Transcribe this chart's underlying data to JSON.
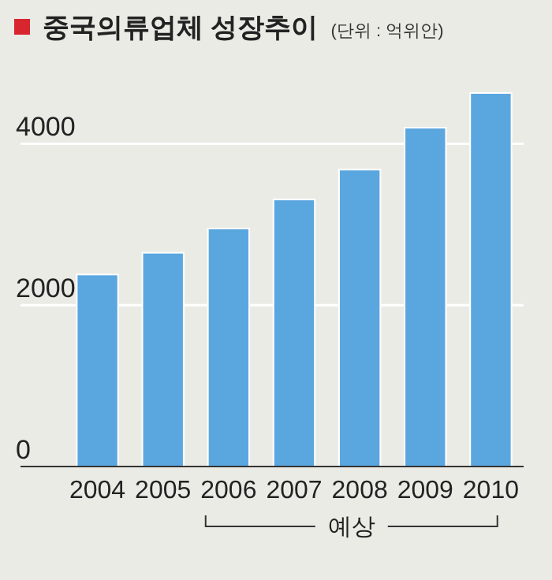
{
  "chart_data": {
    "type": "bar",
    "title": "중국의류업체 성장추이",
    "subtitle": "(단위 : 억위안)",
    "categories": [
      "2004",
      "2005",
      "2006",
      "2007",
      "2008",
      "2009",
      "2010"
    ],
    "values": [
      2380,
      2650,
      2950,
      3310,
      3680,
      4200,
      4630
    ],
    "color": "#5aa6df",
    "ylim": [
      0,
      4630
    ],
    "yticks": [
      0,
      2000,
      4000
    ],
    "grid": "y",
    "annotations": [
      "예상"
    ]
  }
}
